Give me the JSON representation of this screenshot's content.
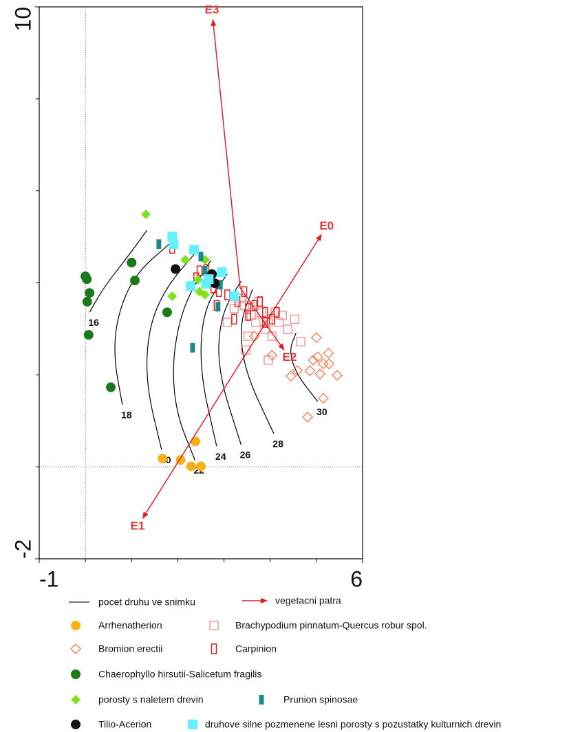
{
  "chart_data": {
    "type": "scatter",
    "xlim": [
      -1,
      6
    ],
    "ylim": [
      -2,
      10
    ],
    "xticks": [
      -1,
      6
    ],
    "yticks": [
      -2,
      10
    ],
    "xminor": [
      0,
      1,
      2,
      3,
      4,
      5
    ],
    "yminor": [
      0,
      2,
      4,
      6,
      8
    ],
    "zero_lines": true,
    "isolines": {
      "name": "pocet druhu ve snimku",
      "color": "#1a1a60",
      "lines": [
        {
          "level": 16,
          "x": [
            1.33,
            0.91,
            0.39,
            0.09
          ],
          "y": [
            5.14,
            4.56,
            3.89,
            3.36
          ]
        },
        {
          "level": 18,
          "x": [
            1.88,
            1.07,
            0.69,
            0.61,
            0.8
          ],
          "y": [
            4.9,
            4.19,
            3.29,
            2.39,
            1.35
          ]
        },
        {
          "level": 20,
          "x": [
            2.43,
            1.73,
            1.36,
            1.31,
            1.65
          ],
          "y": [
            4.71,
            3.89,
            2.99,
            1.79,
            0.37
          ]
        },
        {
          "level": 22,
          "x": [
            2.71,
            2.14,
            1.88,
            1.95,
            2.37
          ],
          "y": [
            4.48,
            3.59,
            2.39,
            1.2,
            0.15
          ]
        },
        {
          "level": 24,
          "x": [
            3.07,
            2.55,
            2.47,
            2.84
          ],
          "y": [
            4.19,
            3.44,
            2.09,
            0.45
          ]
        },
        {
          "level": 26,
          "x": [
            3.37,
            2.92,
            2.86,
            3.37
          ],
          "y": [
            4.04,
            3.29,
            2.09,
            0.48
          ]
        },
        {
          "level": 28,
          "x": [
            3.62,
            3.34,
            3.44,
            4.08
          ],
          "y": [
            3.86,
            3.14,
            2.09,
            0.72
          ]
        },
        {
          "level": 30,
          "x": [
            4.56,
            4.41,
            4.56,
            5.03
          ],
          "y": [
            2.91,
            2.54,
            2.02,
            1.42
          ]
        }
      ]
    },
    "arrows": {
      "name": "vegetacni patra",
      "color": "#e02020",
      "items": [
        {
          "label": "E3",
          "x": [
            3.35,
            2.76
          ],
          "y": [
            3.89,
            9.72
          ]
        },
        {
          "label": "E0",
          "x": [
            3.17,
            5.11
          ],
          "y": [
            1.97,
            5.05
          ]
        },
        {
          "label": "E2",
          "x": [
            3.35,
            4.3
          ],
          "y": [
            3.89,
            2.54
          ]
        },
        {
          "label": "E1",
          "x": [
            3.17,
            1.24
          ],
          "y": [
            1.97,
            -1.12
          ]
        }
      ]
    },
    "series": [
      {
        "name": "Arrhenatherion",
        "color": "#f5b21b",
        "marker": "circle",
        "x": [
          1.67,
          2.06,
          2.38,
          2.29,
          2.5
        ],
        "y": [
          0.18,
          0.15,
          0.55,
          0.01,
          0.01
        ]
      },
      {
        "name": "Brachypodium pinnatum-Quercus robur spol.",
        "color": "#f08a8a",
        "marker": "square-open",
        "x": [
          3.07,
          3.22,
          3.44,
          3.52,
          3.59,
          3.69,
          3.81,
          3.89,
          3.96,
          4.04,
          4.11,
          4.19,
          4.26,
          3.96,
          3.47,
          4.53,
          4.66,
          4.38,
          3.74,
          3.37
        ],
        "y": [
          3.14,
          3.44,
          3.51,
          2.84,
          3.29,
          3.14,
          3.36,
          2.99,
          3.14,
          2.84,
          3.36,
          3.14,
          3.29,
          2.32,
          2.54,
          3.21,
          2.72,
          2.99,
          3.59,
          3.66
        ]
      },
      {
        "name": "Bromion erectii",
        "color": "#f07a50",
        "marker": "diamond-open",
        "x": [
          5.0,
          5.26,
          4.93,
          5.15,
          5.45,
          5.15,
          4.81,
          4.45,
          4.59,
          5.03,
          4.86,
          5.08,
          5.27,
          4.04,
          3.66
        ],
        "y": [
          2.81,
          2.47,
          2.32,
          2.24,
          1.99,
          1.49,
          1.08,
          1.97,
          2.09,
          2.39,
          2.09,
          2.02,
          2.24,
          2.42,
          2.84
        ]
      },
      {
        "name": "Carpinion",
        "color": "#e02020",
        "marker": "rect-open",
        "x": [
          1.88,
          2.4,
          2.47,
          2.62,
          2.77,
          2.89,
          3.07,
          3.29,
          3.44,
          3.52,
          3.66,
          3.78,
          3.89,
          4.04,
          4.14,
          3.52,
          3.22,
          2.84,
          3.89
        ],
        "y": [
          4.75,
          4.11,
          4.26,
          4.29,
          3.89,
          3.81,
          3.74,
          3.59,
          3.81,
          3.44,
          3.51,
          3.59,
          3.36,
          3.21,
          3.36,
          3.29,
          3.21,
          3.51,
          3.14
        ]
      },
      {
        "name": "Chaerophyllo hirsutii-Salicetum fragilis",
        "color": "#1a7a1a",
        "marker": "circle",
        "x": [
          0.0,
          0.03,
          0.09,
          0.04,
          0.07,
          0.55,
          1.0,
          1.07,
          1.77
        ],
        "y": [
          4.14,
          4.08,
          3.78,
          3.59,
          2.87,
          1.73,
          4.44,
          4.05,
          3.36
        ]
      },
      {
        "name": "porosty s naletem drevin",
        "color": "#80e020",
        "marker": "diamond",
        "x": [
          1.31,
          2.16,
          2.59,
          1.88,
          2.47,
          2.59,
          2.44
        ],
        "y": [
          5.49,
          4.5,
          4.5,
          3.71,
          3.81,
          3.74,
          4.07
        ]
      },
      {
        "name": "Prunion spinosae",
        "color": "#1a8a8a",
        "marker": "rect",
        "x": [
          1.59,
          2.5,
          2.87,
          2.32,
          2.59,
          2.92
        ],
        "y": [
          4.84,
          4.57,
          3.48,
          2.59,
          4.26,
          3.96
        ]
      },
      {
        "name": "Tilio-Acerion",
        "color": "#111111",
        "marker": "circle",
        "x": [
          1.95,
          2.74,
          2.8
        ],
        "y": [
          4.3,
          4.19,
          3.99
        ]
      },
      {
        "name": "druhove silne pozmenene lesni porosty s pozustatky kulturnich drevin",
        "color": "#66f0ff",
        "marker": "square",
        "x": [
          1.88,
          1.91,
          2.35,
          2.28,
          2.61,
          2.95,
          2.67,
          3.22
        ],
        "y": [
          5.01,
          4.84,
          4.72,
          3.93,
          3.98,
          4.23,
          4.08,
          3.71
        ]
      }
    ]
  }
}
